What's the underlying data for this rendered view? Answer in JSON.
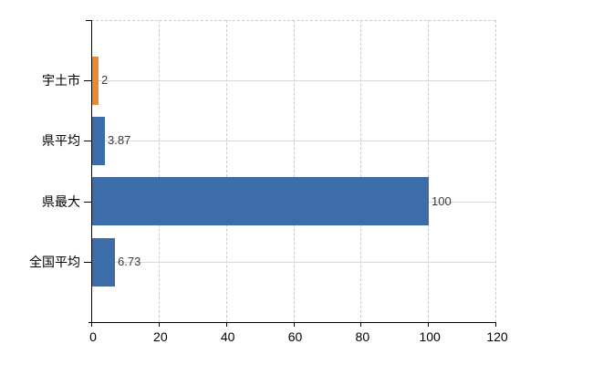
{
  "chart_data": {
    "type": "bar",
    "orientation": "horizontal",
    "title": "",
    "xlabel": "",
    "ylabel": "",
    "categories": [
      "宇土市",
      "県平均",
      "県最大",
      "全国平均"
    ],
    "values": [
      2,
      3.87,
      100,
      6.73
    ],
    "value_labels": [
      "2",
      "3.87",
      "100",
      "6.73"
    ],
    "bar_colors": [
      "#e98a30",
      "#3c6daa",
      "#3c6daa",
      "#3c6daa"
    ],
    "xlim": [
      0,
      120
    ],
    "x_ticks": [
      0,
      20,
      40,
      60,
      80,
      100,
      120
    ],
    "grid": {
      "vertical": "dashed",
      "horizontal": "solid-at-category-centers",
      "top_border": "dashed",
      "right_border": "dashed"
    },
    "legend": false
  },
  "colors": {
    "background": "#ffffff",
    "bar_blue": "#3c6daa",
    "bar_orange": "#e98a30",
    "axis_line": "#000000",
    "vertical_grid": "#cbcbcb",
    "horizontal_grid": "#d7dbd0",
    "category_text": "#000000",
    "tick_text": "#000000",
    "value_text": "#3a3a3a"
  }
}
